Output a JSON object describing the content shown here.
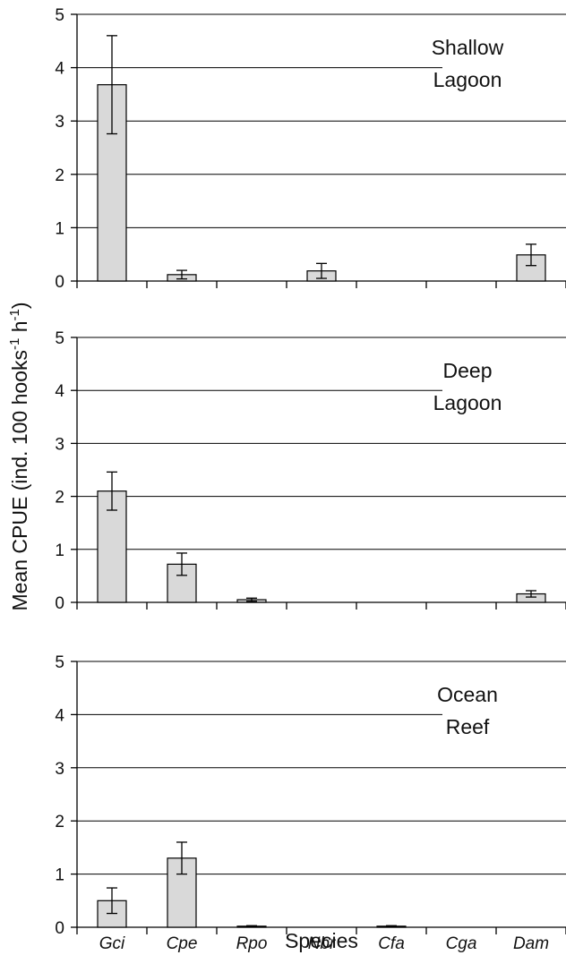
{
  "chart_data": {
    "type": "bar",
    "categories": [
      "Gci",
      "Cpe",
      "Rpo",
      "Nbr",
      "Cfa",
      "Cga",
      "Dam"
    ],
    "xlabel": "Species",
    "ylabel_main": "Mean CPUE (ind. 100 hooks",
    "ylabel_sup1": "-1",
    "ylabel_mid": " h",
    "ylabel_sup2": "-1",
    "ylabel_end": ")",
    "ylim": [
      0,
      5
    ],
    "yticks": [
      "0",
      "1",
      "2",
      "3",
      "4",
      "5"
    ],
    "bar_color": "#d9d9d9",
    "grid": true,
    "panels": [
      {
        "label_line1": "Shallow",
        "label_line2": "Lagoon",
        "values": [
          3.68,
          0.12,
          0,
          0.19,
          0,
          0,
          0.49
        ],
        "errors": [
          0.92,
          0.08,
          0,
          0.14,
          0,
          0,
          0.2
        ]
      },
      {
        "label_line1": "Deep",
        "label_line2": "Lagoon",
        "values": [
          2.1,
          0.72,
          0.05,
          0,
          0,
          0,
          0.16
        ],
        "errors": [
          0.36,
          0.21,
          0.03,
          0,
          0,
          0,
          0.06
        ]
      },
      {
        "label_line1": "Ocean",
        "label_line2": "Reef",
        "values": [
          0.5,
          1.3,
          0.02,
          0,
          0.02,
          0,
          0
        ],
        "errors": [
          0.24,
          0.3,
          0.01,
          0,
          0.01,
          0,
          0
        ]
      }
    ]
  }
}
